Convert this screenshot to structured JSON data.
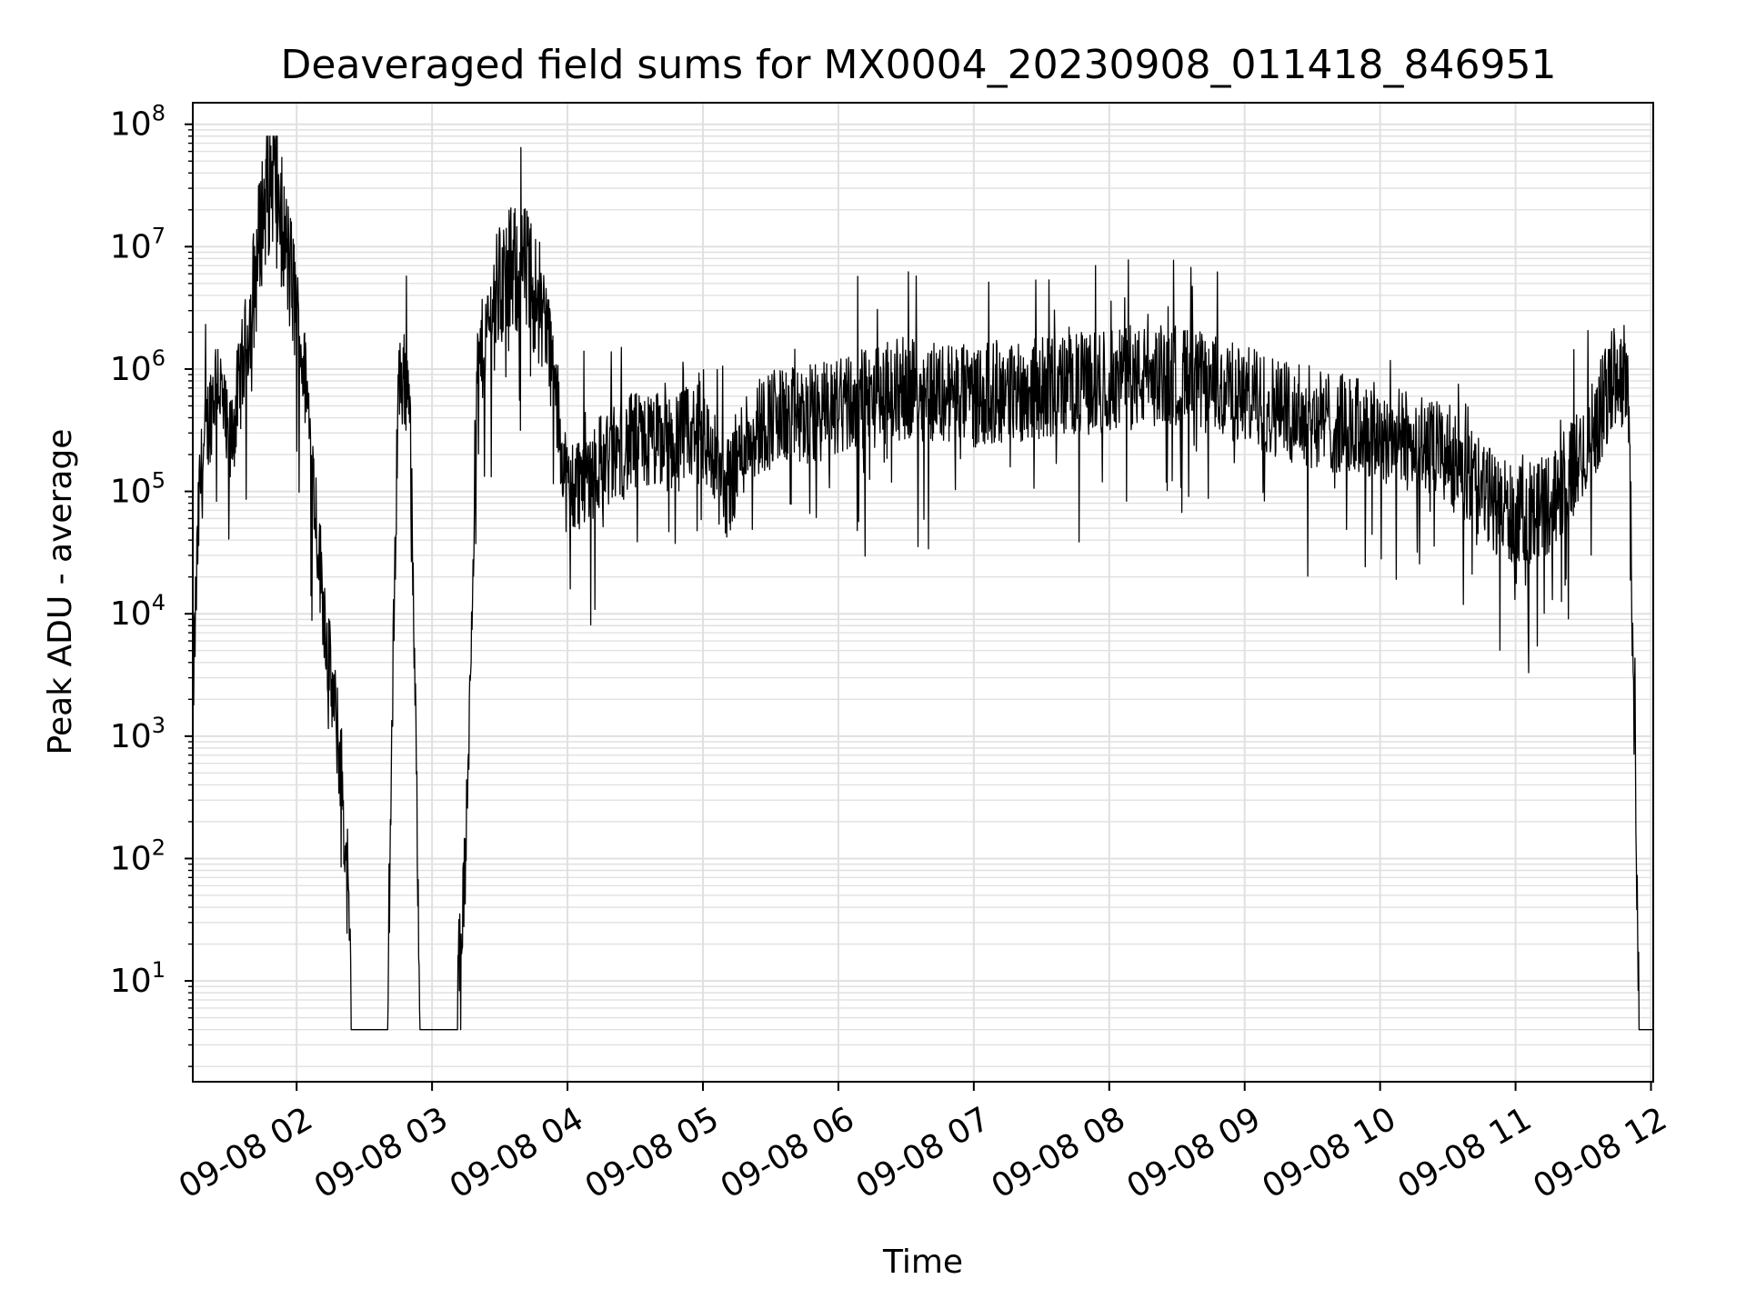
{
  "chart_data": {
    "type": "line",
    "title": "Deaveraged field sums for MX0004_20230908_011418_846951",
    "xlabel": "Time",
    "ylabel": "Peak ADU - average",
    "yscale": "log",
    "ylim": [
      1.5,
      150000000
    ],
    "xlim": [
      "2023-09-08 01:14",
      "2023-09-08 12:01"
    ],
    "grid": true,
    "line_color": "#000000",
    "grid_color": "#e0e0e0",
    "x_ticks": [
      "09-08 02",
      "09-08 03",
      "09-08 04",
      "09-08 05",
      "09-08 06",
      "09-08 07",
      "09-08 08",
      "09-08 09",
      "09-08 10",
      "09-08 11",
      "09-08 12"
    ],
    "x_tick_times": [
      "2023-09-08 02:00",
      "2023-09-08 03:00",
      "2023-09-08 04:00",
      "2023-09-08 05:00",
      "2023-09-08 06:00",
      "2023-09-08 07:00",
      "2023-09-08 08:00",
      "2023-09-08 09:00",
      "2023-09-08 10:00",
      "2023-09-08 11:00",
      "2023-09-08 12:00"
    ],
    "y_ticks": [
      {
        "value": 10,
        "base": "10",
        "exp": "1"
      },
      {
        "value": 100,
        "base": "10",
        "exp": "2"
      },
      {
        "value": 1000,
        "base": "10",
        "exp": "3"
      },
      {
        "value": 10000,
        "base": "10",
        "exp": "4"
      },
      {
        "value": 100000,
        "base": "10",
        "exp": "5"
      },
      {
        "value": 1000000,
        "base": "10",
        "exp": "6"
      },
      {
        "value": 10000000,
        "base": "10",
        "exp": "7"
      },
      {
        "value": 100000000,
        "base": "10",
        "exp": "8"
      }
    ],
    "series": [
      {
        "x": [
          "2023-09-08 01:14",
          "2023-09-08 01:17",
          "2023-09-08 01:20",
          "2023-09-08 01:25",
          "2023-09-08 01:30",
          "2023-09-08 01:35",
          "2023-09-08 01:40",
          "2023-09-08 01:45",
          "2023-09-08 01:50",
          "2023-09-08 01:55",
          "2023-09-08 02:00",
          "2023-09-08 02:05",
          "2023-09-08 02:10",
          "2023-09-08 02:15",
          "2023-09-08 02:20",
          "2023-09-08 02:25",
          "2023-09-08 02:30",
          "2023-09-08 02:40",
          "2023-09-08 02:45",
          "2023-09-08 02:50",
          "2023-09-08 02:55",
          "2023-09-08 03:00",
          "2023-09-08 03:10",
          "2023-09-08 03:15",
          "2023-09-08 03:20",
          "2023-09-08 03:30",
          "2023-09-08 03:40",
          "2023-09-08 03:50",
          "2023-09-08 04:00",
          "2023-09-08 04:10",
          "2023-09-08 04:20",
          "2023-09-08 04:30",
          "2023-09-08 04:45",
          "2023-09-08 05:00",
          "2023-09-08 05:10",
          "2023-09-08 05:20",
          "2023-09-08 05:30",
          "2023-09-08 05:45",
          "2023-09-08 06:00",
          "2023-09-08 06:30",
          "2023-09-08 07:00",
          "2023-09-08 07:30",
          "2023-09-08 08:00",
          "2023-09-08 08:30",
          "2023-09-08 09:00",
          "2023-09-08 09:30",
          "2023-09-08 10:00",
          "2023-09-08 10:30",
          "2023-09-08 10:45",
          "2023-09-08 11:00",
          "2023-09-08 11:15",
          "2023-09-08 11:30",
          "2023-09-08 11:45",
          "2023-09-08 11:50",
          "2023-09-08 11:55",
          "2023-09-08 12:00"
        ],
        "y": [
          2000,
          100000,
          300000,
          1000000,
          200000,
          800000,
          3000000,
          20000000,
          40000000,
          10000000,
          3000000,
          500000,
          30000,
          3000,
          500,
          4,
          4,
          4,
          800000,
          800000,
          4,
          4,
          4,
          100,
          1000000,
          5000000,
          7000000,
          3000000,
          100000,
          150000,
          200000,
          250000,
          250000,
          300000,
          100000,
          300000,
          400000,
          400000,
          500000,
          700000,
          600000,
          700000,
          800000,
          900000,
          600000,
          400000,
          300000,
          200000,
          100000,
          60000,
          80000,
          200000,
          1000000,
          700000,
          4,
          4
        ]
      }
    ]
  }
}
